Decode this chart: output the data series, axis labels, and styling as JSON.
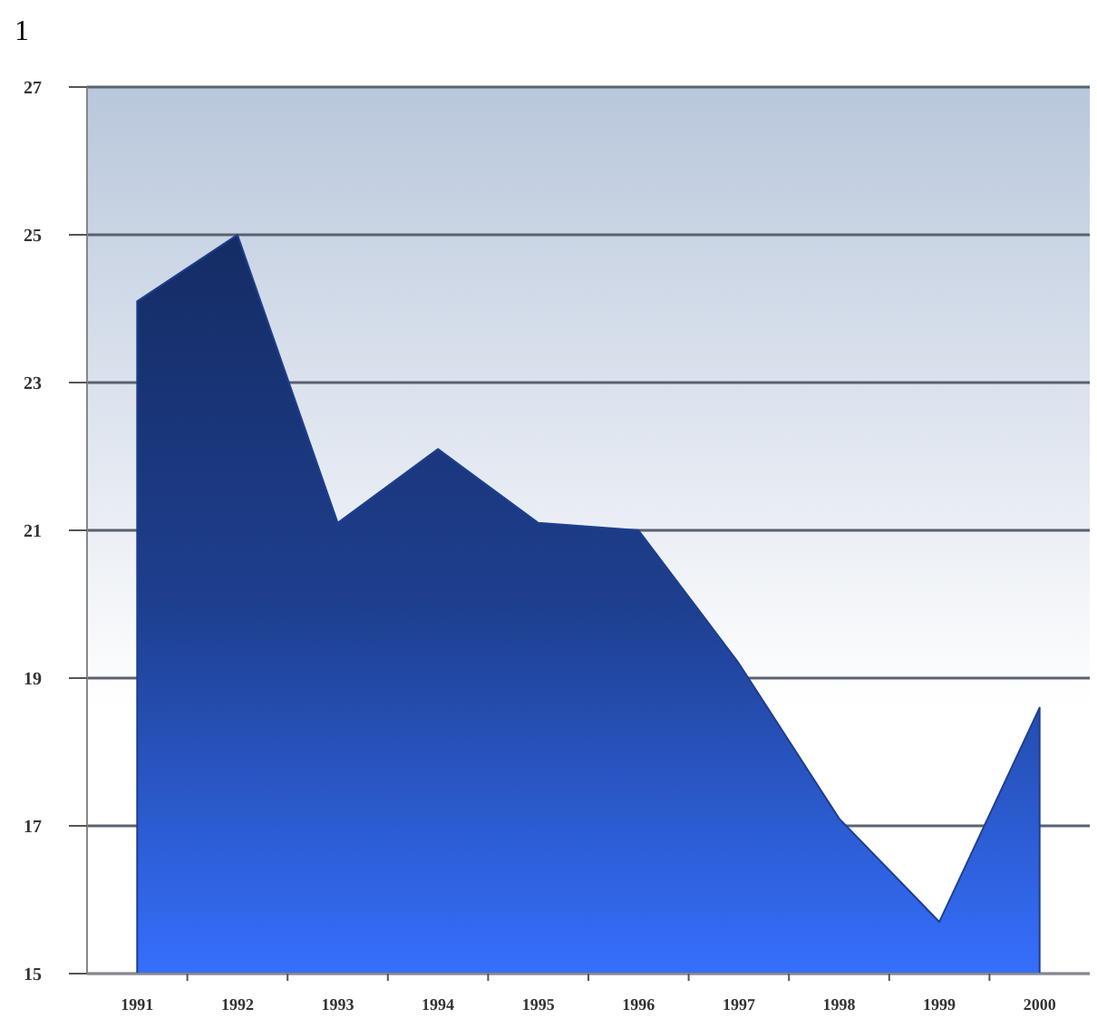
{
  "chart_data": {
    "type": "area",
    "title": "1",
    "categories": [
      "1991",
      "1992",
      "1993",
      "1994",
      "1995",
      "1996",
      "1997",
      "1998",
      "1999",
      "2000"
    ],
    "series": [
      {
        "color": "#1e3f8f",
        "values": [
          24.1,
          25.0,
          21.1,
          22.1,
          21.1,
          21.0,
          19.2,
          17.1,
          15.7,
          18.6
        ]
      }
    ],
    "ylim": [
      15,
      27
    ],
    "yticks": [
      15,
      17,
      19,
      21,
      23,
      25,
      27
    ],
    "grid": "y"
  }
}
